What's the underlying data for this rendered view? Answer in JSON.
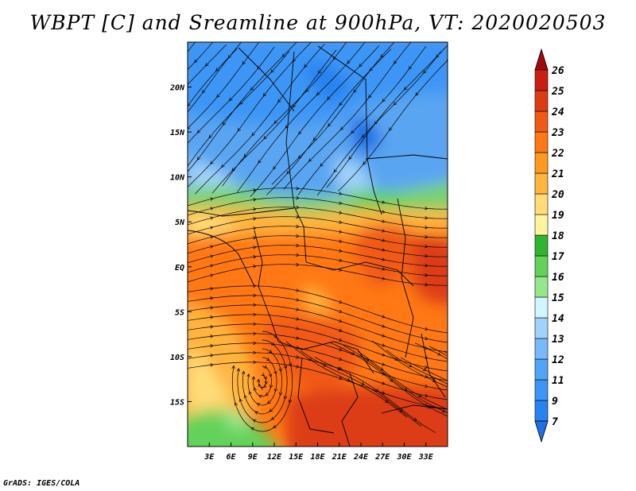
{
  "title": "WBPT [C] and Sreamline at 900hPa, VT: 2020020503",
  "footer": "GrADS: IGES/COLA",
  "map": {
    "lon_range": [
      0,
      36
    ],
    "lat_range": [
      -20,
      25
    ],
    "lon_ticks": [
      {
        "value": 3,
        "label": "3E"
      },
      {
        "value": 6,
        "label": "6E"
      },
      {
        "value": 9,
        "label": "9E"
      },
      {
        "value": 12,
        "label": "12E"
      },
      {
        "value": 15,
        "label": "15E"
      },
      {
        "value": 18,
        "label": "18E"
      },
      {
        "value": 21,
        "label": "21E"
      },
      {
        "value": 24,
        "label": "24E"
      },
      {
        "value": 27,
        "label": "27E"
      },
      {
        "value": 30,
        "label": "30E"
      },
      {
        "value": 33,
        "label": "33E"
      }
    ],
    "lat_ticks": [
      {
        "value": 20,
        "label": "20N"
      },
      {
        "value": 15,
        "label": "15N"
      },
      {
        "value": 10,
        "label": "10N"
      },
      {
        "value": 5,
        "label": "5N"
      },
      {
        "value": 0,
        "label": "EQ"
      },
      {
        "value": -5,
        "label": "5S"
      },
      {
        "value": -10,
        "label": "10S"
      },
      {
        "value": -15,
        "label": "15S"
      }
    ]
  },
  "colorbar": {
    "levels": [
      "7",
      "9",
      "11",
      "12",
      "13",
      "14",
      "15",
      "16",
      "17",
      "18",
      "19",
      "20",
      "21",
      "22",
      "23",
      "24",
      "25",
      "26"
    ],
    "colors": [
      "#1e6ee6",
      "#2882f0",
      "#3c96f5",
      "#50a5f5",
      "#78b9fa",
      "#a0d2fa",
      "#d2f5ff",
      "#96e68c",
      "#64d25a",
      "#32b432",
      "#fff5a0",
      "#ffdc78",
      "#ffb43c",
      "#ff9a1e",
      "#ff7814",
      "#f05a14",
      "#dc3c14",
      "#c81e14",
      "#a00a0a"
    ]
  }
}
